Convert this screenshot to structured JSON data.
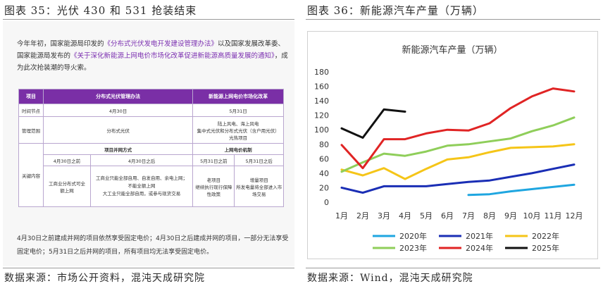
{
  "left": {
    "figure_title": "图表 35：光伏 430 和 531 抢装结束",
    "intro_parts": [
      "今年年初，国家能源局印发的",
      "《分布式光伏发电开发建设管理办法》",
      "以及国家发展改革委、国家能源局发布的",
      "《关于深化新能源上网电价市场化改革促进新能源高质量发展的通知》",
      "，成为此次抢装潮的导火索。"
    ],
    "table": {
      "col_header_blank": "项目",
      "header_a": "分布式光伏管理办法",
      "header_b": "新能源上网电价市场化改革",
      "row_time_label": "时间节点",
      "row_time_a": "4月30日",
      "row_time_b": "5月31日",
      "row_scope_label": "管理范围",
      "row_scope_a": "分布式光伏",
      "row_scope_b_1": "陆上风电、海上风电",
      "row_scope_b_2": "集中式光伏和分布式光伏（含户用光伏）",
      "row_scope_b_3": "光热项目",
      "row_key_label": "关键内容",
      "key_sub_a": "项目并网方式",
      "key_sub_b": "上网电价机制",
      "key_a1_head": "4月30日之前",
      "key_a2_head": "4月30日之后",
      "key_b1_head": "5月31日之前",
      "key_b2_head": "5月31日之后",
      "key_a1_body": "工商业分布式可全额上网",
      "key_a2_body_1": "工商业只能全部自用、自发自用、余电上网；不能全额上网",
      "key_a2_body_2": "大工业只能全部自用，或参与现货交易",
      "key_b1_body_1": "老项目",
      "key_b1_body_2": "继续执行现行保障性政策",
      "key_b2_body_1": "增量项目",
      "key_b2_body_2": "所发电量将全部进入市场交易"
    },
    "outro": "4月30日之前建成并网的项目依然享受固定电价；4月30日之后建成并网的项目，一部分无法享受固定电价；5月31日之后并网的项目，所有项目均无法享受固定电价。",
    "source": "数据来源：市场公开资料，混沌天成研究院"
  },
  "right": {
    "figure_title": "图表 36：新能源汽车产量（万辆）",
    "source": "数据来源：Wind，混沌天成研究院"
  },
  "chart_data": {
    "type": "line",
    "title": "新能源汽车产量（万辆）",
    "categories": [
      "1月",
      "2月",
      "3月",
      "4月",
      "5月",
      "6月",
      "7月",
      "8月",
      "9月",
      "10月",
      "11月",
      "12月"
    ],
    "ylim": [
      0,
      180
    ],
    "yticks": [
      0,
      20,
      40,
      60,
      80,
      100,
      120,
      140,
      160,
      180
    ],
    "grid": false,
    "legend_position": "bottom",
    "series": [
      {
        "name": "2020年",
        "color": "#1fa6e0",
        "values": [
          null,
          null,
          null,
          null,
          null,
          null,
          10,
          11,
          15,
          18,
          21,
          24
        ]
      },
      {
        "name": "2021年",
        "color": "#1a2eb5",
        "values": [
          20,
          13,
          22,
          22,
          22,
          25,
          28,
          30,
          35,
          40,
          46,
          52
        ]
      },
      {
        "name": "2022年",
        "color": "#f5c518",
        "values": [
          45,
          37,
          47,
          32,
          46,
          59,
          62,
          69,
          75,
          76,
          77,
          80
        ]
      },
      {
        "name": "2023年",
        "color": "#8fce5a",
        "values": [
          42,
          55,
          67,
          64,
          70,
          78,
          80,
          84,
          88,
          98,
          106,
          117
        ]
      },
      {
        "name": "2024年",
        "color": "#e02424",
        "values": [
          79,
          47,
          87,
          87,
          95,
          100,
          99,
          109,
          130,
          146,
          157,
          153
        ]
      },
      {
        "name": "2025年",
        "color": "#111111",
        "values": [
          102,
          89,
          128,
          125,
          null,
          null,
          null,
          null,
          null,
          null,
          null,
          null
        ]
      }
    ]
  }
}
